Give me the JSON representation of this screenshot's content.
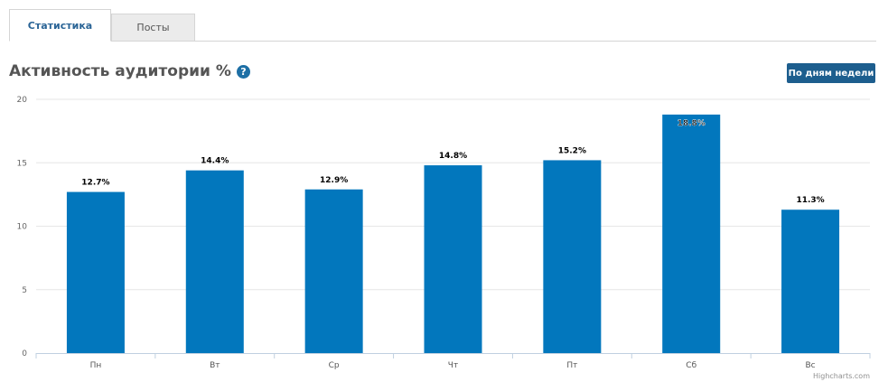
{
  "tabs": [
    {
      "label": "Статистика",
      "active": true
    },
    {
      "label": "Посты",
      "active": false
    }
  ],
  "header": {
    "title": "Активность аудитории %",
    "help_icon": "?",
    "week_button_label": "По дням недели"
  },
  "colors": {
    "bar": "#0277bd",
    "accent": "#1d5e8e",
    "grid": "#e6e6e6"
  },
  "credit": "Highcharts.com",
  "chart_data": {
    "type": "bar",
    "categories": [
      "Пн",
      "Вт",
      "Ср",
      "Чт",
      "Пт",
      "Сб",
      "Вс"
    ],
    "values": [
      12.7,
      14.4,
      12.9,
      14.8,
      15.2,
      18.8,
      11.3
    ],
    "data_labels": [
      "12.7%",
      "14.4%",
      "12.9%",
      "14.8%",
      "15.2%",
      "18.8%",
      "11.3%"
    ],
    "ylim": [
      0,
      20
    ],
    "yticks": [
      0,
      5,
      10,
      15,
      20
    ],
    "grid": true,
    "legend": false
  }
}
